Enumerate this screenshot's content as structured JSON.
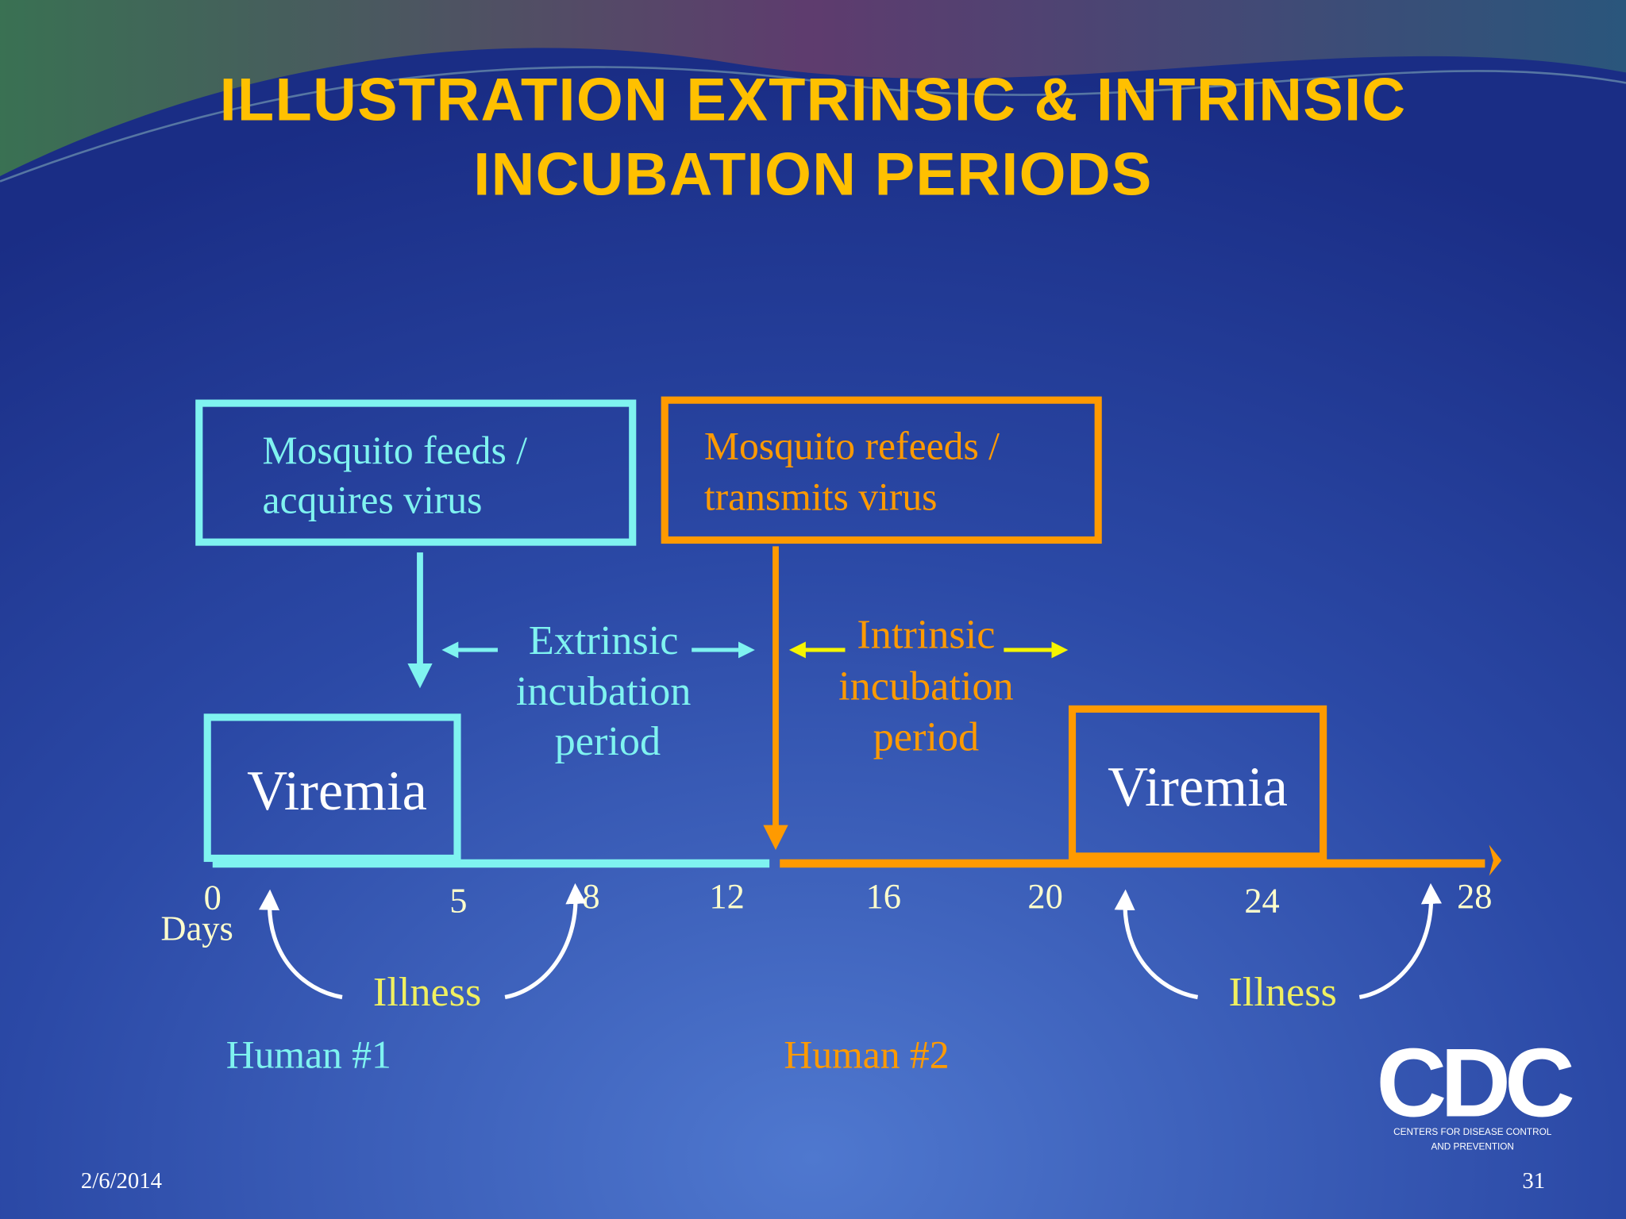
{
  "title": [
    "ILLUSTRATION EXTRINSIC & INTRINSIC",
    "INCUBATION PERIODS"
  ],
  "boxes": {
    "acquire": [
      "Mosquito feeds /",
      "acquires virus"
    ],
    "transmit": [
      "Mosquito refeeds /",
      "transmits virus"
    ],
    "viremia_1": "Viremia",
    "viremia_2": "Viremia"
  },
  "periods": {
    "extrinsic": [
      "Extrinsic",
      "incubation",
      "period"
    ],
    "intrinsic": [
      "Intrinsic",
      "incubation",
      "period"
    ]
  },
  "timeline": {
    "ticks": [
      0,
      5,
      8,
      12,
      16,
      20,
      24,
      28
    ],
    "unit": "Days"
  },
  "illness": [
    "Illness",
    "Illness"
  ],
  "humans": [
    "Human #1",
    "Human #2"
  ],
  "logo": {
    "name": "CDC",
    "subtitle": [
      "CENTERS FOR DISEASE CONTROL",
      "AND PREVENTION"
    ]
  },
  "footer": {
    "date": "2/6/2014",
    "page": 31
  }
}
